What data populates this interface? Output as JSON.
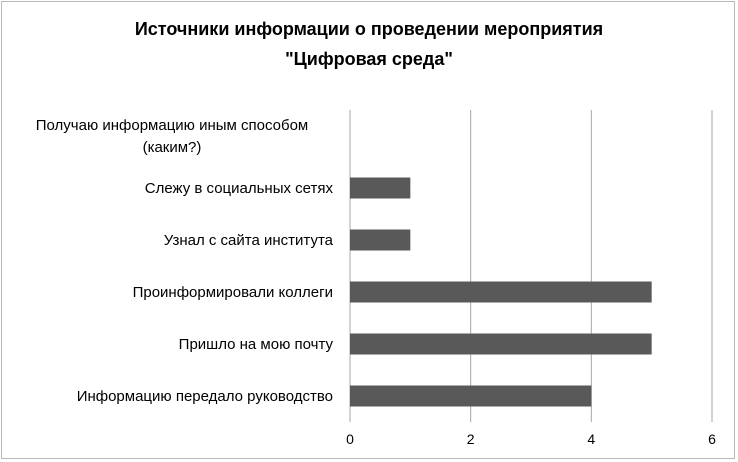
{
  "chart_data": {
    "type": "bar",
    "orientation": "horizontal",
    "title": "Источники информации о проведении мероприятия\n\"Цифровая среда\"",
    "xlabel": "",
    "ylabel": "",
    "categories": [
      "Получаю информацию иным способом (каким?)",
      "Слежу в социальных сетях",
      "Узнал с сайта института",
      "Проинформировали коллеги",
      "Пришло на мою почту",
      "Информацию передало руководство"
    ],
    "values": [
      0,
      1,
      1,
      5,
      5,
      4
    ],
    "xlim": [
      0,
      6
    ],
    "ticks": [
      0,
      2,
      4,
      6
    ],
    "grid": true,
    "legend": "none",
    "bar_color": "#595959",
    "grid_color": "#a6a6a6"
  }
}
